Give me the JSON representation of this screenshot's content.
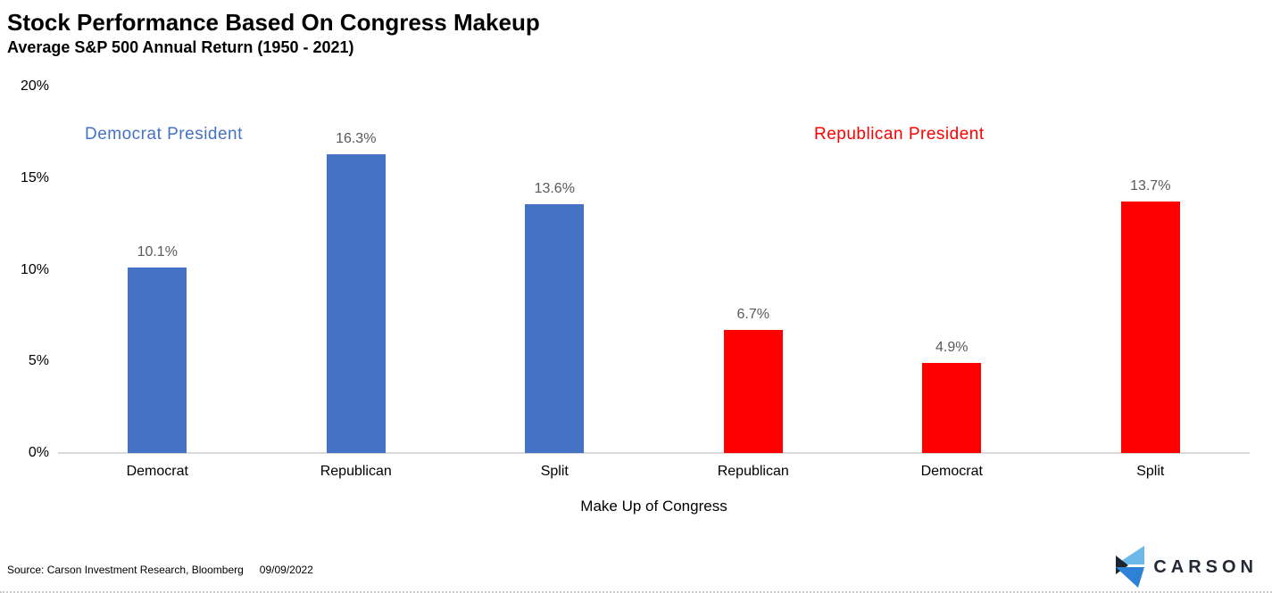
{
  "header": {
    "title": "Stock Performance Based On Congress Makeup",
    "subtitle": "Average S&P 500 Annual Return (1950 - 2021)"
  },
  "chart_data": {
    "type": "bar",
    "xlabel": "Make Up of Congress",
    "ylabel": "",
    "ylim": [
      0,
      20
    ],
    "grid": false,
    "yticks": [
      {
        "value": 0,
        "label": "0%"
      },
      {
        "value": 5,
        "label": "5%"
      },
      {
        "value": 10,
        "label": "10%"
      },
      {
        "value": 15,
        "label": "15%"
      },
      {
        "value": 20,
        "label": "20%"
      }
    ],
    "groups": [
      {
        "name": "Democrat President",
        "color": "#4472C4"
      },
      {
        "name": "Republican President",
        "color": "#FF0000"
      }
    ],
    "categories": [
      "Democrat",
      "Republican",
      "Split",
      "Republican",
      "Democrat",
      "Split"
    ],
    "bars": [
      {
        "category": "Democrat",
        "value": 10.1,
        "label": "10.1%",
        "group": "Democrat President"
      },
      {
        "category": "Republican",
        "value": 16.3,
        "label": "16.3%",
        "group": "Democrat President"
      },
      {
        "category": "Split",
        "value": 13.6,
        "label": "13.6%",
        "group": "Democrat President"
      },
      {
        "category": "Republican",
        "value": 6.7,
        "label": "6.7%",
        "group": "Republican President"
      },
      {
        "category": "Democrat",
        "value": 4.9,
        "label": "4.9%",
        "group": "Republican President"
      },
      {
        "category": "Split",
        "value": 13.7,
        "label": "13.7%",
        "group": "Republican President"
      }
    ]
  },
  "footer": {
    "source": "Source: Carson Investment Research, Bloomberg",
    "date": "09/09/2022",
    "logo_text": "CARSON"
  },
  "colors": {
    "bar_blue": "#4472C4",
    "bar_red": "#FF0000",
    "value_label": "#595959",
    "axis_line": "#d9d9d9",
    "logo_light_blue": "#6cb9e9",
    "logo_medium_blue": "#2d82d6",
    "logo_dark": "#1e2430"
  }
}
